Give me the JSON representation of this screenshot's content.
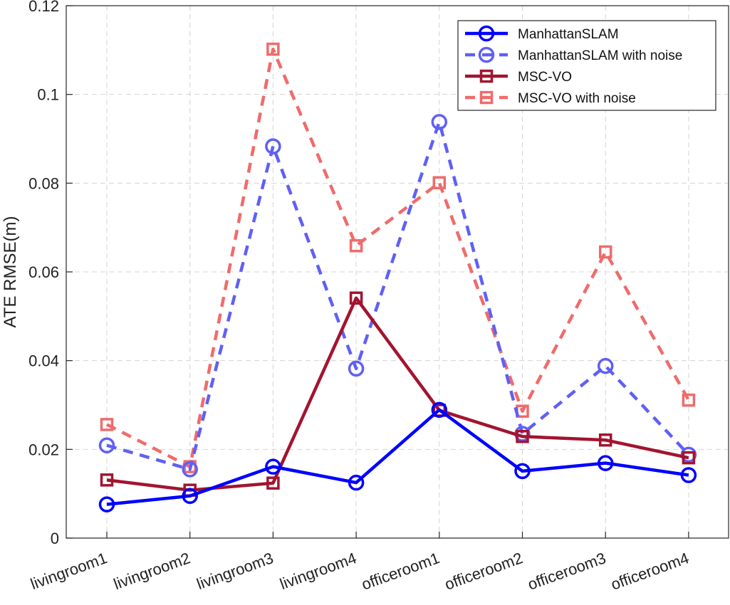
{
  "chart_data": {
    "type": "line",
    "title": "",
    "xlabel": "",
    "ylabel": "ATE RMSE(m)",
    "categories": [
      "livingroom1",
      "livingroom2",
      "livingroom3",
      "livingroom4",
      "officeroom1",
      "officeroom2",
      "officeroom3",
      "officeroom4"
    ],
    "ylim": [
      0,
      0.12
    ],
    "yticks": [
      0,
      0.02,
      0.04,
      0.06,
      0.08,
      0.1,
      0.12
    ],
    "ytick_labels": [
      "0",
      "0.02",
      "0.04",
      "0.06",
      "0.08",
      "0.1",
      "0.12"
    ],
    "grid": true,
    "legend_position": "top-right",
    "series": [
      {
        "name": "ManhattanSLAM",
        "color": "#0000ff",
        "line_style": "solid",
        "marker": "circle",
        "values": [
          0.0076,
          0.0095,
          0.0161,
          0.0125,
          0.0289,
          0.0151,
          0.0169,
          0.0142
        ]
      },
      {
        "name": "ManhattanSLAM with noise",
        "color": "#6060f5",
        "line_style": "dashed",
        "marker": "circle",
        "values": [
          0.0209,
          0.0155,
          0.0883,
          0.0382,
          0.0938,
          0.0235,
          0.0388,
          0.0188
        ]
      },
      {
        "name": "MSC-VO",
        "color": "#a2142f",
        "line_style": "solid",
        "marker": "square",
        "values": [
          0.0131,
          0.0108,
          0.0124,
          0.0541,
          0.0288,
          0.0229,
          0.0221,
          0.0181
        ]
      },
      {
        "name": "MSC-VO with noise",
        "color": "#f06b6b",
        "line_style": "dashed",
        "marker": "square",
        "values": [
          0.0256,
          0.0161,
          0.1102,
          0.0659,
          0.0801,
          0.0286,
          0.0645,
          0.0311
        ]
      }
    ]
  }
}
